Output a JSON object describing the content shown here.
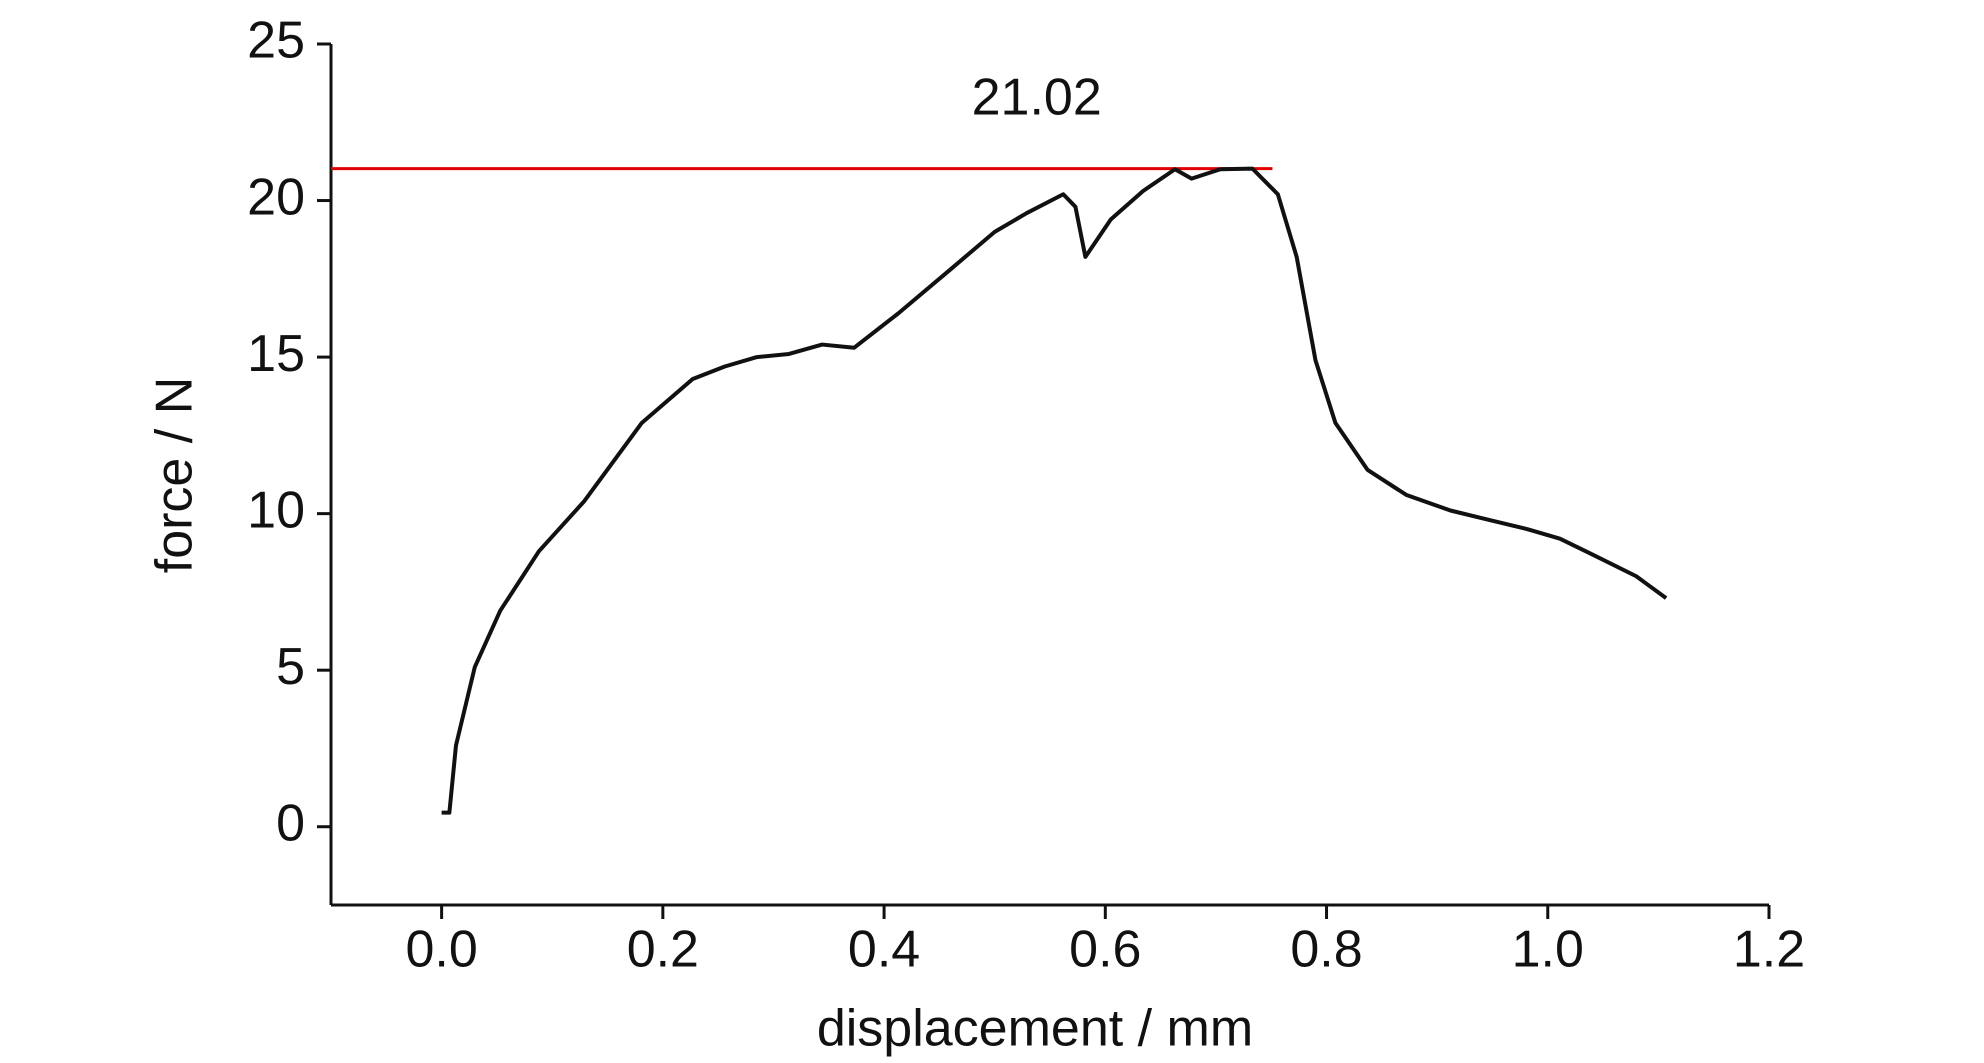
{
  "chart_data": {
    "type": "line",
    "x_label": "displacement / mm",
    "y_label": "force / N",
    "x": [
      0,
      0.007,
      0.013,
      0.03,
      0.053,
      0.088,
      0.129,
      0.181,
      0.227,
      0.256,
      0.285,
      0.314,
      0.344,
      0.373,
      0.413,
      0.46,
      0.5,
      0.529,
      0.562,
      0.573,
      0.582,
      0.605,
      0.634,
      0.663,
      0.678,
      0.704,
      0.733,
      0.756,
      0.773,
      0.79,
      0.808,
      0.837,
      0.872,
      0.912,
      0.947,
      0.982,
      1.011,
      1.04,
      1.08,
      1.107
    ],
    "series": [
      {
        "name": "force",
        "color": "#111111",
        "values": [
          0.45,
          0.45,
          2.6,
          5.1,
          6.9,
          8.8,
          10.4,
          12.9,
          14.3,
          14.7,
          15.0,
          15.1,
          15.4,
          15.3,
          16.4,
          17.8,
          19.0,
          19.6,
          20.2,
          19.8,
          18.2,
          19.4,
          20.3,
          21.0,
          20.7,
          21.0,
          21.02,
          20.2,
          18.2,
          14.9,
          12.9,
          11.4,
          10.6,
          10.1,
          9.8,
          9.5,
          9.2,
          8.7,
          8.0,
          7.3
        ]
      }
    ],
    "peak": 21.02,
    "peak_color": "#e00000",
    "xlim": [
      -0.1,
      1.2
    ],
    "xticks": [
      {
        "value": 0,
        "label": "0.0"
      },
      0.2,
      0.4,
      0.6,
      0.8,
      {
        "value": 1,
        "label": "1.0"
      },
      1.2
    ],
    "ylim": [
      -2.5,
      25
    ],
    "yticks": [
      0,
      5,
      10,
      15,
      20,
      25
    ],
    "grid": false
  }
}
